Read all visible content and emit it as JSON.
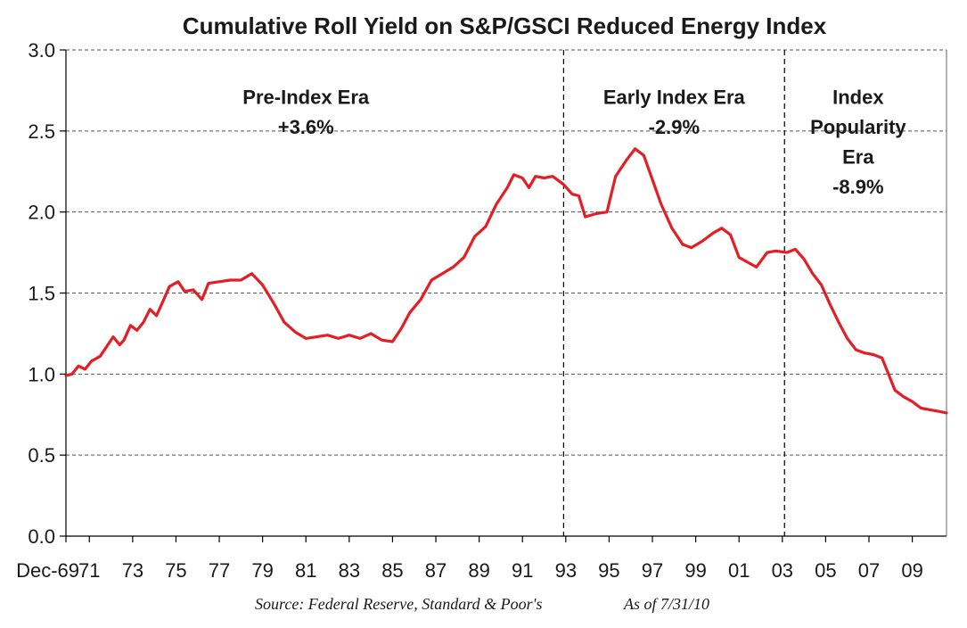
{
  "chart_data": {
    "type": "line",
    "title": "Cumulative Roll Yield on S&P/GSCI Reduced Energy Index",
    "source": "Source: Federal Reserve, Standard & Poor's",
    "as_of": "As of 7/31/10",
    "ylim": [
      0.0,
      3.0
    ],
    "yticks": [
      "0.0",
      "0.5",
      "1.0",
      "1.5",
      "2.0",
      "2.5",
      "3.0"
    ],
    "xlim": [
      1969.92,
      2010.58
    ],
    "xticks": [
      {
        "x": 1969.92,
        "label": "Dec-69"
      },
      {
        "x": 1971.0,
        "label": "71"
      },
      {
        "x": 1973.0,
        "label": "73"
      },
      {
        "x": 1975.0,
        "label": "75"
      },
      {
        "x": 1977.0,
        "label": "77"
      },
      {
        "x": 1979.0,
        "label": "79"
      },
      {
        "x": 1981.0,
        "label": "81"
      },
      {
        "x": 1983.0,
        "label": "83"
      },
      {
        "x": 1985.0,
        "label": "85"
      },
      {
        "x": 1987.0,
        "label": "87"
      },
      {
        "x": 1989.0,
        "label": "89"
      },
      {
        "x": 1991.0,
        "label": "91"
      },
      {
        "x": 1993.0,
        "label": "93"
      },
      {
        "x": 1995.0,
        "label": "95"
      },
      {
        "x": 1997.0,
        "label": "97"
      },
      {
        "x": 1999.0,
        "label": "99"
      },
      {
        "x": 2001.0,
        "label": "01"
      },
      {
        "x": 2003.0,
        "label": "03"
      },
      {
        "x": 2005.0,
        "label": "05"
      },
      {
        "x": 2007.0,
        "label": "07"
      },
      {
        "x": 2009.0,
        "label": "09"
      }
    ],
    "grid": "horizontal dashed",
    "dividers": [
      1992.9,
      2003.1
    ],
    "eras": [
      {
        "lines": [
          "Pre-Index Era",
          "+3.6%"
        ],
        "x": 1981.0,
        "y": 2.75
      },
      {
        "lines": [
          "Early Index Era",
          "-2.9%"
        ],
        "x": 1998.0,
        "y": 2.75
      },
      {
        "lines": [
          "Index",
          "Popularity",
          "Era",
          "-8.9%"
        ],
        "x": 2006.5,
        "y": 2.75
      }
    ],
    "series": [
      {
        "color": "#e31e24",
        "points": [
          [
            1969.92,
            0.99
          ],
          [
            1970.2,
            1.0
          ],
          [
            1970.5,
            1.05
          ],
          [
            1970.8,
            1.03
          ],
          [
            1971.1,
            1.08
          ],
          [
            1971.5,
            1.11
          ],
          [
            1971.8,
            1.17
          ],
          [
            1972.1,
            1.23
          ],
          [
            1972.4,
            1.18
          ],
          [
            1972.6,
            1.21
          ],
          [
            1972.9,
            1.3
          ],
          [
            1973.2,
            1.27
          ],
          [
            1973.5,
            1.32
          ],
          [
            1973.8,
            1.4
          ],
          [
            1974.1,
            1.36
          ],
          [
            1974.4,
            1.45
          ],
          [
            1974.7,
            1.54
          ],
          [
            1975.1,
            1.57
          ],
          [
            1975.4,
            1.51
          ],
          [
            1975.8,
            1.52
          ],
          [
            1976.2,
            1.46
          ],
          [
            1976.5,
            1.56
          ],
          [
            1977.0,
            1.57
          ],
          [
            1977.5,
            1.58
          ],
          [
            1978.0,
            1.58
          ],
          [
            1978.5,
            1.62
          ],
          [
            1979.0,
            1.55
          ],
          [
            1979.5,
            1.44
          ],
          [
            1980.0,
            1.32
          ],
          [
            1980.5,
            1.26
          ],
          [
            1981.0,
            1.22
          ],
          [
            1981.5,
            1.23
          ],
          [
            1982.0,
            1.24
          ],
          [
            1982.5,
            1.22
          ],
          [
            1983.0,
            1.24
          ],
          [
            1983.5,
            1.22
          ],
          [
            1984.0,
            1.25
          ],
          [
            1984.5,
            1.21
          ],
          [
            1985.0,
            1.2
          ],
          [
            1985.4,
            1.28
          ],
          [
            1985.8,
            1.38
          ],
          [
            1986.3,
            1.46
          ],
          [
            1986.8,
            1.58
          ],
          [
            1987.3,
            1.62
          ],
          [
            1987.8,
            1.66
          ],
          [
            1988.3,
            1.72
          ],
          [
            1988.8,
            1.85
          ],
          [
            1989.3,
            1.91
          ],
          [
            1989.8,
            2.05
          ],
          [
            1990.3,
            2.15
          ],
          [
            1990.6,
            2.23
          ],
          [
            1991.0,
            2.21
          ],
          [
            1991.3,
            2.15
          ],
          [
            1991.6,
            2.22
          ],
          [
            1992.0,
            2.21
          ],
          [
            1992.4,
            2.22
          ],
          [
            1992.9,
            2.17
          ],
          [
            1993.3,
            2.11
          ],
          [
            1993.6,
            2.1
          ],
          [
            1993.9,
            1.97
          ],
          [
            1994.4,
            1.99
          ],
          [
            1994.9,
            2.0
          ],
          [
            1995.3,
            2.22
          ],
          [
            1995.8,
            2.32
          ],
          [
            1996.2,
            2.39
          ],
          [
            1996.6,
            2.35
          ],
          [
            1997.0,
            2.2
          ],
          [
            1997.4,
            2.05
          ],
          [
            1997.9,
            1.9
          ],
          [
            1998.4,
            1.8
          ],
          [
            1998.8,
            1.78
          ],
          [
            1999.3,
            1.82
          ],
          [
            1999.8,
            1.87
          ],
          [
            2000.2,
            1.9
          ],
          [
            2000.6,
            1.86
          ],
          [
            2001.0,
            1.72
          ],
          [
            2001.4,
            1.69
          ],
          [
            2001.8,
            1.66
          ],
          [
            2002.3,
            1.75
          ],
          [
            2002.7,
            1.76
          ],
          [
            2003.2,
            1.75
          ],
          [
            2003.6,
            1.77
          ],
          [
            2004.0,
            1.71
          ],
          [
            2004.4,
            1.62
          ],
          [
            2004.8,
            1.55
          ],
          [
            2005.2,
            1.43
          ],
          [
            2005.6,
            1.32
          ],
          [
            2006.0,
            1.22
          ],
          [
            2006.4,
            1.15
          ],
          [
            2006.8,
            1.13
          ],
          [
            2007.2,
            1.12
          ],
          [
            2007.6,
            1.1
          ],
          [
            2007.9,
            1.0
          ],
          [
            2008.2,
            0.9
          ],
          [
            2008.6,
            0.86
          ],
          [
            2009.0,
            0.83
          ],
          [
            2009.4,
            0.79
          ],
          [
            2009.8,
            0.78
          ],
          [
            2010.2,
            0.77
          ],
          [
            2010.58,
            0.76
          ]
        ]
      }
    ]
  }
}
